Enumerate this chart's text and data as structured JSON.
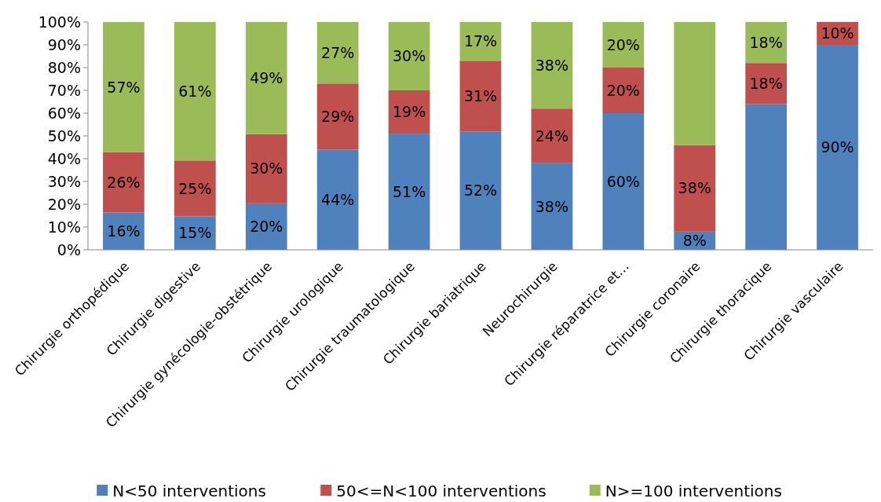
{
  "chart_data": {
    "type": "bar",
    "stacked": true,
    "categories": [
      "Chirurgie orthopédique",
      "Chirurgie digestive",
      "Chirurgie gynécologie-obstétrique",
      "Chirurgie urologique",
      "Chirurgie traumatologique",
      "Chirurgie bariatrique",
      "Neurochirurgie",
      "Chirurgie réparatrice et...",
      "Chirurgie coronaire",
      "Chirurgie thoracique",
      "Chirurgie vasculaire"
    ],
    "series": [
      {
        "name": "N<50 interventions",
        "color": "#4f81bd",
        "values": [
          16.4,
          14.6,
          20.4,
          44,
          51,
          52,
          38,
          60,
          8,
          64,
          90
        ],
        "value_labels": [
          "16%",
          "15%",
          "20%",
          "44%",
          "51%",
          "52%",
          "38%",
          "60%",
          "8%",
          null,
          "90%"
        ]
      },
      {
        "name": "50<=N<100 interventions",
        "color": "#c0504d",
        "values": [
          26.4,
          24.6,
          30.4,
          29,
          19,
          31,
          24,
          20,
          38,
          18,
          10
        ],
        "value_labels": [
          "26%",
          "25%",
          "30%",
          "29%",
          "19%",
          "31%",
          "24%",
          "20%",
          "38%",
          "18%",
          "10%"
        ]
      },
      {
        "name": "N>=100 interventions",
        "color": "#9bbb59",
        "values": [
          57.2,
          60.8,
          49.2,
          27,
          30,
          17,
          38,
          20,
          54,
          18,
          0
        ],
        "value_labels": [
          "57%",
          "61%",
          "49%",
          "27%",
          "30%",
          "17%",
          "38%",
          "20%",
          null,
          "18%",
          null
        ]
      }
    ],
    "ylim": [
      0,
      100
    ],
    "yticks": [
      {
        "value": 0,
        "label": "0%"
      },
      {
        "value": 10,
        "label": "10%"
      },
      {
        "value": 20,
        "label": "20%"
      },
      {
        "value": 30,
        "label": "30%"
      },
      {
        "value": 40,
        "label": "40%"
      },
      {
        "value": 50,
        "label": "50%"
      },
      {
        "value": 60,
        "label": "60%"
      },
      {
        "value": 70,
        "label": "70%"
      },
      {
        "value": 80,
        "label": "80%"
      },
      {
        "value": 90,
        "label": "90%"
      },
      {
        "value": 100,
        "label": "100%"
      }
    ],
    "legend": "bottom",
    "grid": false
  }
}
